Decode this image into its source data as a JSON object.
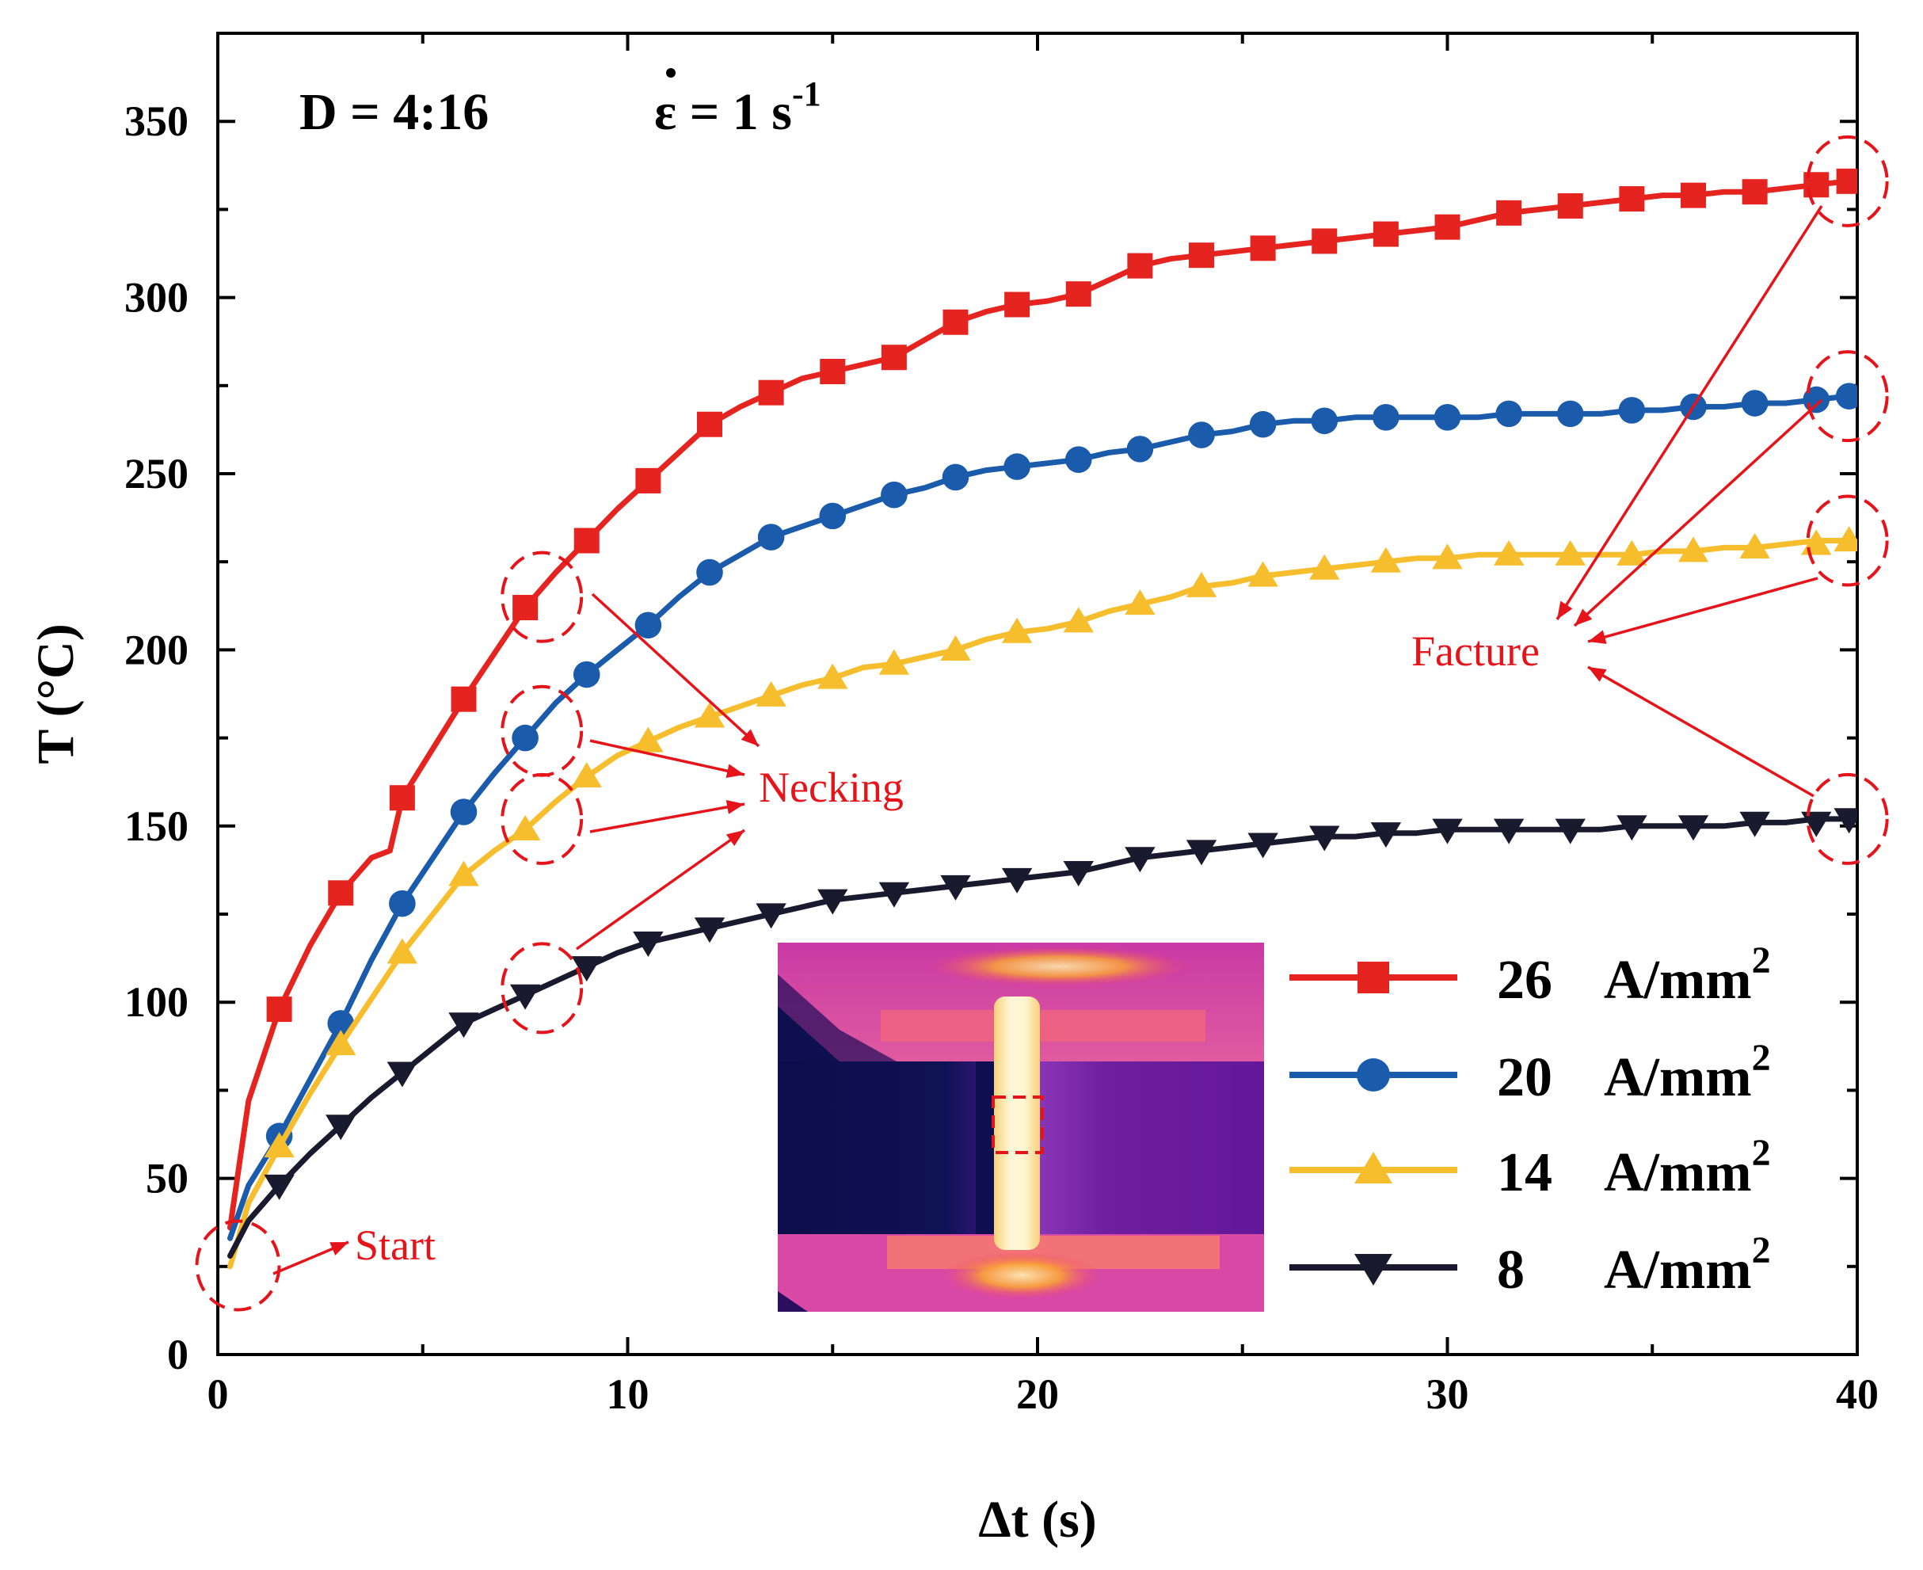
{
  "chart_data": {
    "type": "line",
    "xlabel": "Δt  (s)",
    "ylabel": "T  (°C)",
    "xlim": [
      0,
      40
    ],
    "ylim": [
      0,
      375
    ],
    "xticks": [
      "0",
      "10",
      "20",
      "30",
      "40"
    ],
    "yticks": [
      "0",
      "50",
      "100",
      "150",
      "200",
      "250",
      "300",
      "350"
    ],
    "conditions": {
      "d_ratio": "D = 4:16",
      "strain_rate_symbol": "ε",
      "strain_rate_value": " = 1 s",
      "strain_rate_exp": "-1"
    },
    "legend_position": "bottom-right",
    "series": [
      {
        "name_value": "26",
        "name_unit": "A/mm",
        "name_exp": "2",
        "color": "#e52420",
        "marker": "square",
        "x": [
          0.3,
          0.75,
          1.5,
          2.25,
          3.0,
          3.75,
          4.2,
          4.5,
          5.25,
          6.0,
          6.75,
          7.5,
          8.25,
          9.0,
          9.75,
          10.5,
          11.25,
          12.0,
          12.75,
          13.5,
          14.25,
          15.0,
          15.75,
          16.5,
          17.25,
          18.0,
          18.75,
          19.5,
          20.25,
          21.0,
          21.75,
          22.5,
          23.25,
          24.0,
          24.75,
          25.5,
          26.25,
          27.0,
          27.75,
          28.5,
          29.25,
          30.0,
          30.75,
          31.5,
          32.25,
          33.0,
          33.75,
          34.5,
          35.25,
          36.0,
          36.75,
          37.5,
          38.25,
          39.0,
          39.75
        ],
        "y": [
          36,
          72,
          98,
          116,
          131,
          141,
          143,
          158,
          172,
          186,
          199,
          212,
          222,
          231,
          240,
          248,
          256,
          264,
          269,
          273,
          277,
          279,
          281,
          283,
          288,
          293,
          296,
          298,
          299,
          301,
          305,
          309,
          311,
          312,
          313,
          314,
          315,
          316,
          317,
          318,
          319,
          320,
          322,
          324,
          325,
          326,
          327,
          328,
          329,
          329,
          330,
          330,
          331,
          332,
          333
        ],
        "marker_x": [
          1.5,
          3.0,
          4.5,
          6.0,
          7.5,
          9.0,
          10.5,
          12.0,
          13.5,
          15.0,
          16.5,
          18.0,
          19.5,
          21.0,
          22.5,
          24.0,
          25.5,
          27.0,
          28.5,
          30.0,
          31.5,
          33.0,
          34.5,
          36.0,
          37.5,
          39.0,
          39.8
        ],
        "marker_y": [
          98,
          131,
          158,
          186,
          212,
          231,
          248,
          264,
          273,
          279,
          283,
          293,
          298,
          301,
          309,
          312,
          314,
          316,
          318,
          320,
          324,
          326,
          328,
          329,
          330,
          332,
          333
        ]
      },
      {
        "name_value": "20",
        "name_unit": "A/mm",
        "name_exp": "2",
        "color": "#1b5bab",
        "marker": "circle",
        "x": [
          0.3,
          0.75,
          1.5,
          2.25,
          3.0,
          3.75,
          4.5,
          5.25,
          6.0,
          6.75,
          7.5,
          8.25,
          9.0,
          9.75,
          10.5,
          11.25,
          12.0,
          12.75,
          13.5,
          14.25,
          15.0,
          15.75,
          16.5,
          17.25,
          18.0,
          18.75,
          19.5,
          20.25,
          21.0,
          21.75,
          22.5,
          23.25,
          24.0,
          24.75,
          25.5,
          26.25,
          27.0,
          27.75,
          28.5,
          29.25,
          30.0,
          30.75,
          31.5,
          32.25,
          33.0,
          33.75,
          34.5,
          35.25,
          36.0,
          36.75,
          37.5,
          38.25,
          39.0,
          39.75
        ],
        "y": [
          33,
          48,
          62,
          78,
          94,
          112,
          128,
          141,
          154,
          165,
          175,
          185,
          193,
          200,
          207,
          215,
          222,
          227,
          232,
          235,
          238,
          241,
          244,
          246,
          249,
          251,
          252,
          253,
          254,
          256,
          257,
          259,
          261,
          262,
          264,
          265,
          265,
          266,
          266,
          266,
          266,
          266,
          267,
          267,
          267,
          267,
          268,
          268,
          269,
          269,
          270,
          270,
          271,
          272
        ],
        "marker_x": [
          1.5,
          3.0,
          4.5,
          6.0,
          7.5,
          9.0,
          10.5,
          12.0,
          13.5,
          15.0,
          16.5,
          18.0,
          19.5,
          21.0,
          22.5,
          24.0,
          25.5,
          27.0,
          28.5,
          30.0,
          31.5,
          33.0,
          34.5,
          36.0,
          37.5,
          39.0,
          39.8
        ],
        "marker_y": [
          62,
          94,
          128,
          154,
          175,
          193,
          207,
          222,
          232,
          238,
          244,
          249,
          252,
          254,
          257,
          261,
          264,
          265,
          266,
          266,
          267,
          267,
          268,
          269,
          270,
          271,
          272
        ]
      },
      {
        "name_value": "14",
        "name_unit": "A/mm",
        "name_exp": "2",
        "color": "#f6be2c",
        "marker": "triangle-up",
        "x": [
          0.3,
          0.75,
          1.5,
          2.25,
          3.0,
          3.75,
          4.5,
          5.25,
          6.0,
          6.75,
          7.5,
          8.25,
          9.0,
          9.75,
          10.5,
          11.25,
          12.0,
          12.75,
          13.5,
          14.25,
          15.0,
          15.75,
          16.5,
          17.25,
          18.0,
          18.75,
          19.5,
          20.25,
          21.0,
          21.75,
          22.5,
          23.25,
          24.0,
          24.75,
          25.5,
          26.25,
          27.0,
          27.75,
          28.5,
          29.25,
          30.0,
          30.75,
          31.5,
          32.25,
          33.0,
          33.75,
          34.5,
          35.25,
          36.0,
          36.75,
          37.5,
          38.25,
          39.0,
          39.75
        ],
        "y": [
          25,
          43,
          59,
          74,
          88,
          101,
          114,
          125,
          136,
          143,
          149,
          157,
          164,
          170,
          174,
          178,
          181,
          184,
          187,
          190,
          192,
          195,
          196,
          198,
          200,
          203,
          205,
          206,
          208,
          211,
          213,
          215,
          218,
          219,
          221,
          222,
          223,
          224,
          225,
          226,
          226,
          227,
          227,
          227,
          227,
          227,
          227,
          228,
          228,
          229,
          229,
          230,
          231,
          231
        ],
        "marker_x": [
          1.5,
          3.0,
          4.5,
          6.0,
          7.5,
          9.0,
          10.5,
          12.0,
          13.5,
          15.0,
          16.5,
          18.0,
          19.5,
          21.0,
          22.5,
          24.0,
          25.5,
          27.0,
          28.5,
          30.0,
          31.5,
          33.0,
          34.5,
          36.0,
          37.5,
          39.0,
          39.8
        ],
        "marker_y": [
          59,
          88,
          114,
          136,
          149,
          164,
          174,
          181,
          187,
          192,
          196,
          200,
          205,
          208,
          213,
          218,
          221,
          223,
          225,
          226,
          227,
          227,
          227,
          228,
          229,
          230,
          231
        ]
      },
      {
        "name_value": "8",
        "name_unit": "A/mm",
        "name_exp": "2",
        "color": "#1a1a2e",
        "marker": "triangle-down",
        "x": [
          0.3,
          0.75,
          1.5,
          2.25,
          3.0,
          3.75,
          4.5,
          5.25,
          6.0,
          6.75,
          7.5,
          8.25,
          9.0,
          9.75,
          10.5,
          11.25,
          12.0,
          12.75,
          13.5,
          14.25,
          15.0,
          15.75,
          16.5,
          17.25,
          18.0,
          18.75,
          19.5,
          20.25,
          21.0,
          21.75,
          22.5,
          23.25,
          24.0,
          24.75,
          25.5,
          26.25,
          27.0,
          27.75,
          28.5,
          29.25,
          30.0,
          30.75,
          31.5,
          32.25,
          33.0,
          33.75,
          34.5,
          35.25,
          36.0,
          36.75,
          37.5,
          38.25,
          39.0,
          39.75
        ],
        "y": [
          28,
          38,
          48,
          57,
          65,
          73,
          80,
          87,
          94,
          98,
          102,
          106,
          110,
          114,
          117,
          119,
          121,
          123,
          125,
          127,
          129,
          130,
          131,
          132,
          133,
          134,
          135,
          136,
          137,
          139,
          141,
          142,
          143,
          144,
          145,
          146,
          147,
          147,
          148,
          148,
          149,
          149,
          149,
          149,
          149,
          149,
          150,
          150,
          150,
          150,
          151,
          151,
          152,
          152
        ],
        "marker_x": [
          1.5,
          3.0,
          4.5,
          6.0,
          7.5,
          9.0,
          10.5,
          12.0,
          13.5,
          15.0,
          16.5,
          18.0,
          19.5,
          21.0,
          22.5,
          24.0,
          25.5,
          27.0,
          28.5,
          30.0,
          31.5,
          33.0,
          34.5,
          36.0,
          37.5,
          39.0,
          39.8
        ],
        "marker_y": [
          48,
          65,
          80,
          94,
          102,
          110,
          117,
          121,
          125,
          129,
          131,
          133,
          135,
          137,
          141,
          143,
          145,
          147,
          148,
          149,
          149,
          149,
          150,
          150,
          151,
          151,
          152
        ]
      }
    ],
    "annotations": {
      "start": {
        "label": "Start",
        "x": 0.3,
        "y": 28
      },
      "necking": {
        "label": "Necking",
        "points": [
          [
            8.1,
            215
          ],
          [
            8.1,
            177
          ],
          [
            8.1,
            152
          ],
          [
            8.1,
            104
          ]
        ]
      },
      "fracture": {
        "label": "Facture",
        "points": [
          [
            39.8,
            333
          ],
          [
            39.8,
            272
          ],
          [
            39.8,
            231
          ],
          [
            39.8,
            152
          ]
        ]
      }
    },
    "inset": {
      "type": "thermal-image",
      "colors": [
        "#0c0d4a",
        "#5a1b9a",
        "#c02fa8",
        "#f0406b",
        "#f88a2c",
        "#fff4c8"
      ]
    }
  }
}
